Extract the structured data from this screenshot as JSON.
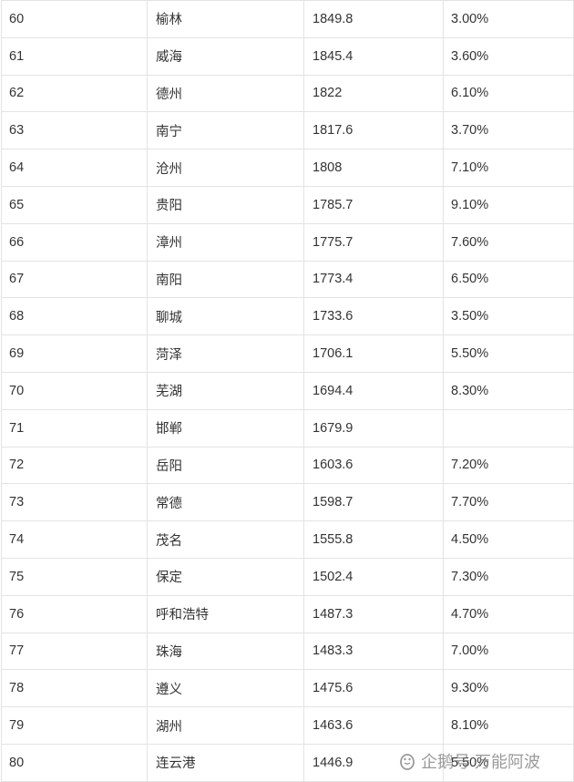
{
  "table": {
    "rows": [
      {
        "rank": "60",
        "city": "榆林",
        "gdp": "1849.8",
        "growth": "3.00%"
      },
      {
        "rank": "61",
        "city": "威海",
        "gdp": "1845.4",
        "growth": "3.60%"
      },
      {
        "rank": "62",
        "city": "德州",
        "gdp": "1822",
        "growth": "6.10%"
      },
      {
        "rank": "63",
        "city": "南宁",
        "gdp": "1817.6",
        "growth": "3.70%"
      },
      {
        "rank": "64",
        "city": "沧州",
        "gdp": "1808",
        "growth": "7.10%"
      },
      {
        "rank": "65",
        "city": "贵阳",
        "gdp": "1785.7",
        "growth": "9.10%"
      },
      {
        "rank": "66",
        "city": "漳州",
        "gdp": "1775.7",
        "growth": "7.60%"
      },
      {
        "rank": "67",
        "city": "南阳",
        "gdp": "1773.4",
        "growth": "6.50%"
      },
      {
        "rank": "68",
        "city": "聊城",
        "gdp": "1733.6",
        "growth": "3.50%"
      },
      {
        "rank": "69",
        "city": "菏泽",
        "gdp": "1706.1",
        "growth": "5.50%"
      },
      {
        "rank": "70",
        "city": "芜湖",
        "gdp": "1694.4",
        "growth": "8.30%"
      },
      {
        "rank": "71",
        "city": "邯郸",
        "gdp": "1679.9",
        "growth": ""
      },
      {
        "rank": "72",
        "city": "岳阳",
        "gdp": "1603.6",
        "growth": "7.20%"
      },
      {
        "rank": "73",
        "city": "常德",
        "gdp": "1598.7",
        "growth": "7.70%"
      },
      {
        "rank": "74",
        "city": "茂名",
        "gdp": "1555.8",
        "growth": "4.50%"
      },
      {
        "rank": "75",
        "city": "保定",
        "gdp": "1502.4",
        "growth": "7.30%"
      },
      {
        "rank": "76",
        "city": "呼和浩特",
        "gdp": "1487.3",
        "growth": "4.70%"
      },
      {
        "rank": "77",
        "city": "珠海",
        "gdp": "1483.3",
        "growth": "7.00%"
      },
      {
        "rank": "78",
        "city": "遵义",
        "gdp": "1475.6",
        "growth": "9.30%"
      },
      {
        "rank": "79",
        "city": "湖州",
        "gdp": "1463.6",
        "growth": "8.10%"
      },
      {
        "rank": "80",
        "city": "连云港",
        "gdp": "1446.9",
        "growth": "5.50%"
      }
    ]
  },
  "watermark": {
    "icon": "penguin-icon",
    "text": "企鹅号 万能阿波"
  }
}
